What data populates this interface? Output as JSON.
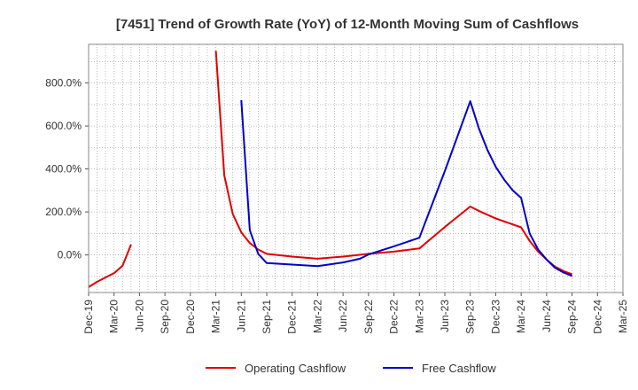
{
  "chart_data": {
    "type": "line",
    "title": "[7451]  Trend of Growth Rate (YoY) of 12-Month Moving Sum of Cashflows",
    "xlabel": "",
    "ylabel": "",
    "x_tick_labels": [
      "Dec-19",
      "Mar-20",
      "Jun-20",
      "Sep-20",
      "Dec-20",
      "Mar-21",
      "Jun-21",
      "Sep-21",
      "Dec-21",
      "Mar-22",
      "Jun-22",
      "Sep-22",
      "Dec-22",
      "Mar-23",
      "Jun-23",
      "Sep-23",
      "Dec-23",
      "Mar-24",
      "Jun-24",
      "Sep-24",
      "Dec-24",
      "Mar-25"
    ],
    "y_ticks": [
      0,
      200,
      400,
      600,
      800
    ],
    "y_tick_labels": [
      "0.0%",
      "200.0%",
      "400.0%",
      "600.0%",
      "800.0%"
    ],
    "ylim": [
      -175,
      980
    ],
    "grid": true,
    "legend_position": "bottom-center",
    "colors": {
      "operating": "#e00000",
      "free": "#0000cc",
      "grid": "#aaaaaa"
    },
    "series": [
      {
        "name": "Operating Cashflow",
        "color": "#e00000",
        "points": [
          [
            "Dec-19",
            -150
          ],
          [
            "Jan-20",
            -125
          ],
          [
            "Feb-20",
            -105
          ],
          [
            "Mar-20",
            -85
          ],
          [
            "Apr-20",
            -50
          ],
          [
            "May-20",
            48
          ],
          null,
          [
            "Mar-21",
            950
          ],
          [
            "Apr-21",
            370
          ],
          [
            "May-21",
            190
          ],
          [
            "Jun-21",
            105
          ],
          [
            "Jul-21",
            55
          ],
          [
            "Aug-21",
            25
          ],
          [
            "Sep-21",
            5
          ],
          [
            "Dec-21",
            -8
          ],
          [
            "Mar-22",
            -18
          ],
          [
            "Jun-22",
            -8
          ],
          [
            "Sep-22",
            5
          ],
          [
            "Dec-22",
            15
          ],
          [
            "Mar-23",
            30
          ],
          [
            "Jun-23",
            130
          ],
          [
            "Sep-23",
            225
          ],
          [
            "Oct-23",
            205
          ],
          [
            "Dec-23",
            170
          ],
          [
            "Mar-24",
            128
          ],
          [
            "Apr-24",
            65
          ],
          [
            "May-24",
            15
          ],
          [
            "Jun-24",
            -22
          ],
          [
            "Jul-24",
            -55
          ],
          [
            "Aug-24",
            -75
          ],
          [
            "Sep-24",
            -90
          ]
        ]
      },
      {
        "name": "Free Cashflow",
        "color": "#0000cc",
        "points": [
          [
            "Jun-21",
            720
          ],
          [
            "Jul-21",
            115
          ],
          [
            "Aug-21",
            5
          ],
          [
            "Sep-21",
            -38
          ],
          [
            "Dec-21",
            -45
          ],
          [
            "Mar-22",
            -52
          ],
          [
            "Jun-22",
            -35
          ],
          [
            "Aug-22",
            -18
          ],
          [
            "Sep-22",
            2
          ],
          [
            "Dec-22",
            40
          ],
          [
            "Mar-23",
            80
          ],
          [
            "Jun-23",
            390
          ],
          [
            "Sep-23",
            715
          ],
          [
            "Oct-23",
            590
          ],
          [
            "Nov-23",
            490
          ],
          [
            "Dec-23",
            410
          ],
          [
            "Jan-24",
            350
          ],
          [
            "Feb-24",
            300
          ],
          [
            "Mar-24",
            265
          ],
          [
            "Apr-24",
            100
          ],
          [
            "May-24",
            25
          ],
          [
            "Jun-24",
            -22
          ],
          [
            "Jul-24",
            -60
          ],
          [
            "Aug-24",
            -82
          ],
          [
            "Sep-24",
            -98
          ]
        ]
      }
    ]
  }
}
